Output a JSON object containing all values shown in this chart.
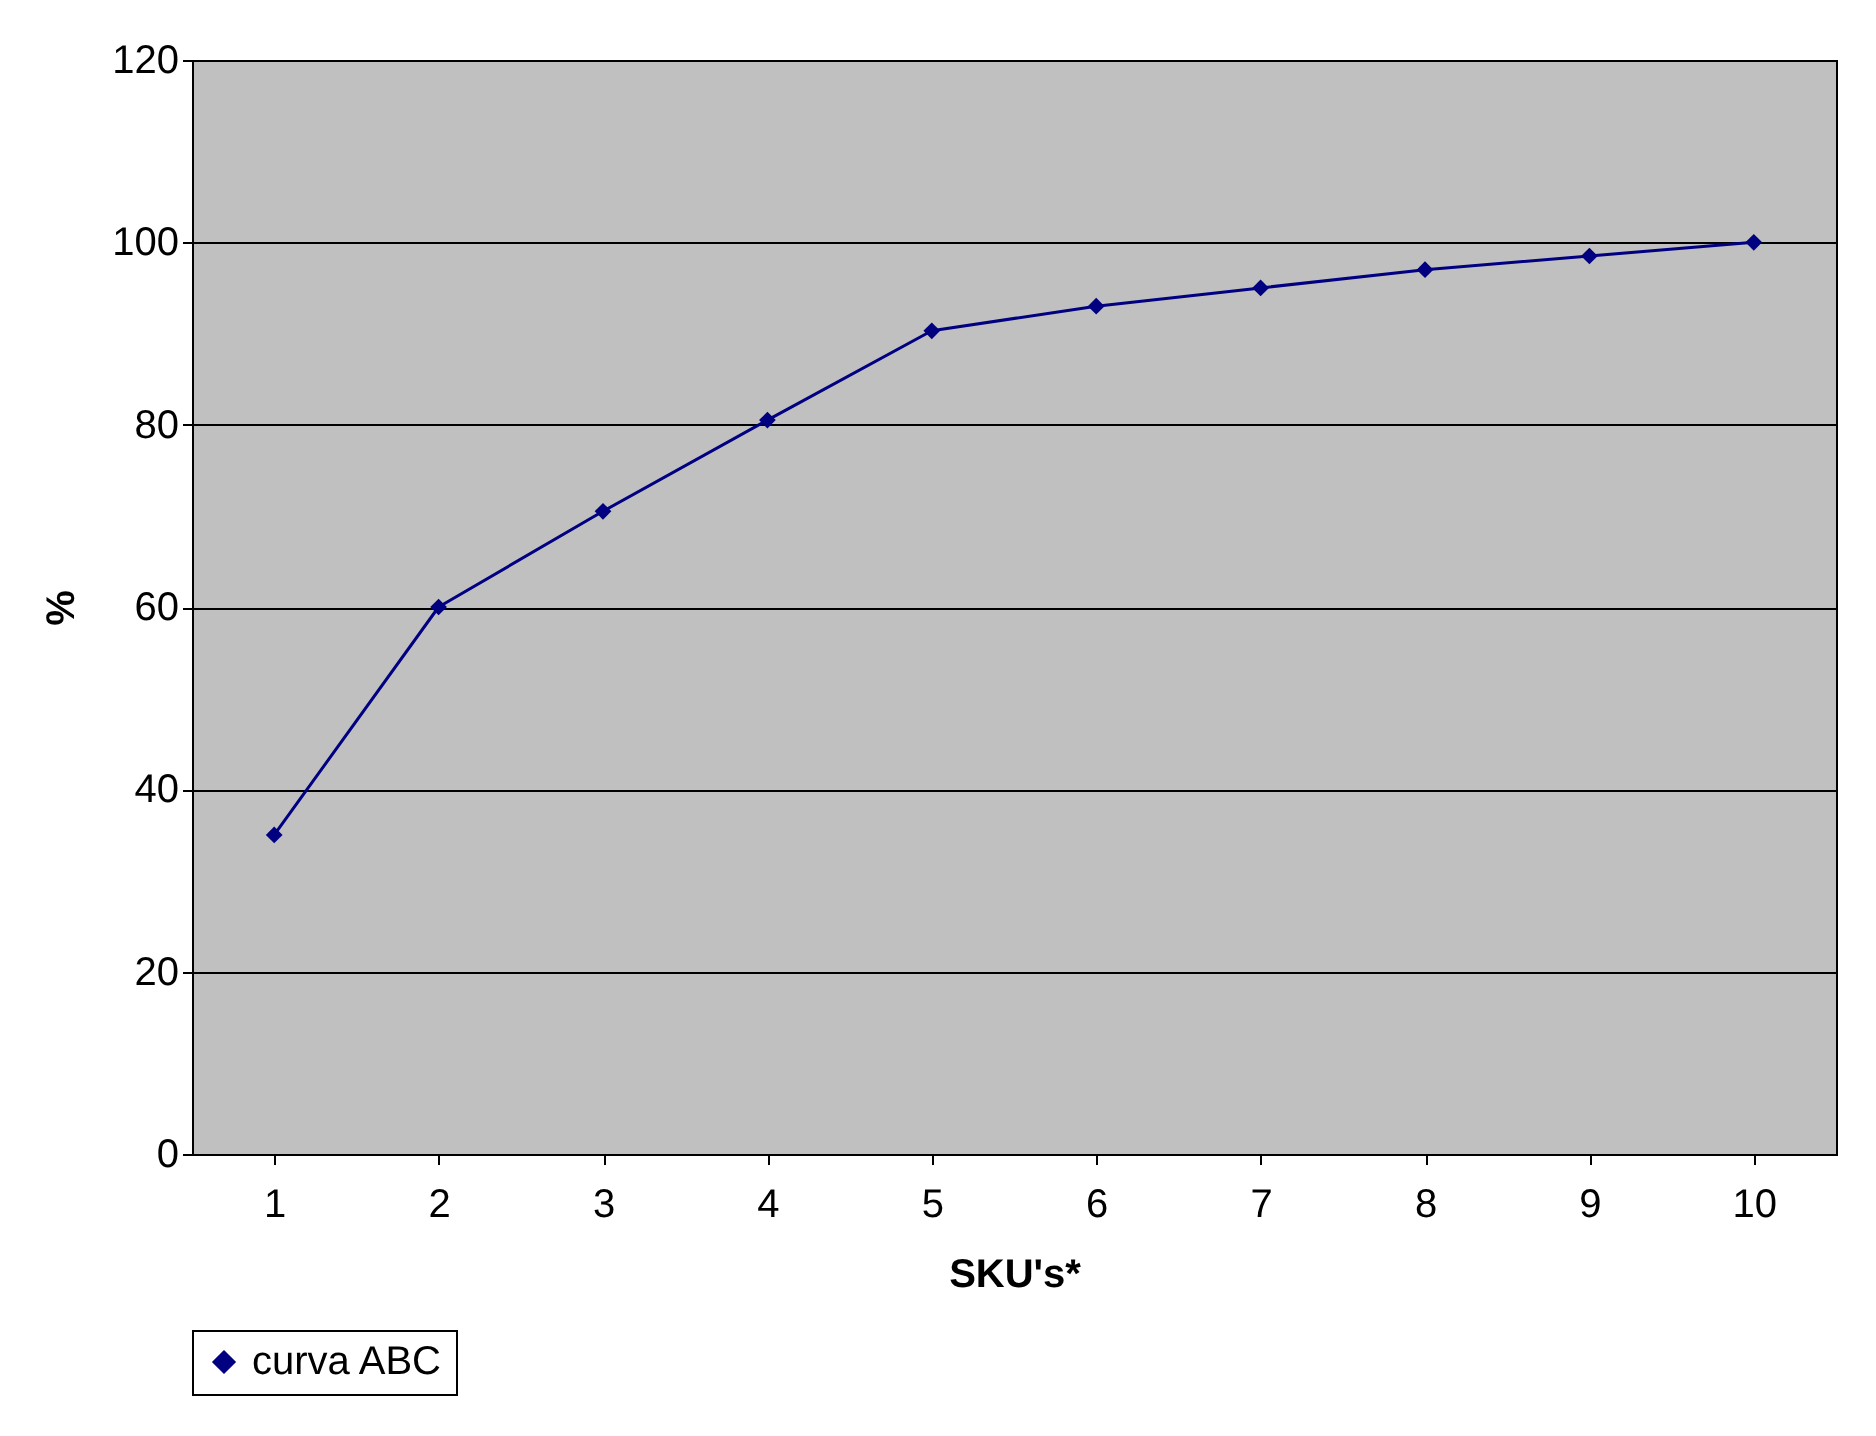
{
  "chart_data": {
    "type": "line",
    "xlabel": "SKU's*",
    "ylabel": "%",
    "categories": [
      "1",
      "2",
      "3",
      "4",
      "5",
      "6",
      "7",
      "8",
      "9",
      "10"
    ],
    "series": [
      {
        "name": "curva ABC",
        "color": "#000080",
        "values": [
          35,
          60,
          70.5,
          80.5,
          90.3,
          93,
          95,
          97,
          98.5,
          100
        ]
      }
    ],
    "ylim": [
      0,
      120
    ],
    "yticks": [
      0,
      20,
      40,
      60,
      80,
      100,
      120
    ],
    "grid": "y",
    "legend": "bottom",
    "marker": "diamond",
    "line_style": "solid"
  }
}
